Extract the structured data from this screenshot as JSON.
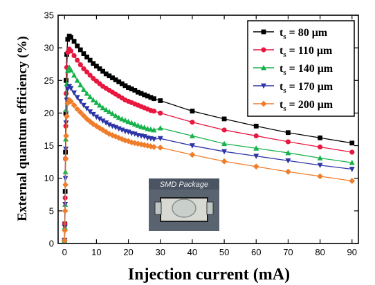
{
  "chart_data": {
    "type": "scatter",
    "xlabel": "Injection current (mA)",
    "ylabel": "External quantum efficiency (%)",
    "xlim": [
      -2,
      92
    ],
    "ylim": [
      0,
      35
    ],
    "xticks": [
      0,
      10,
      20,
      30,
      40,
      50,
      60,
      70,
      80,
      90
    ],
    "yticks": [
      0,
      5,
      10,
      15,
      20,
      25,
      30,
      35
    ],
    "grid": false,
    "legend_position": "top-right",
    "inset_label": "SMD Package",
    "series": [
      {
        "name": "ts = 80 μm",
        "label_main": "t",
        "label_sub": "s",
        "label_rest": " = 80 μm",
        "marker": "square",
        "color": "#000000",
        "x": [
          0,
          0.1,
          0.2,
          0.3,
          0.4,
          0.5,
          0.7,
          1,
          1.5,
          2,
          3,
          4,
          5,
          6,
          7,
          8,
          9,
          10,
          11,
          12,
          13,
          14,
          15,
          16,
          17,
          18,
          19,
          20,
          21,
          22,
          23,
          24,
          25,
          26,
          27,
          28,
          30,
          40,
          50,
          60,
          70,
          80,
          90
        ],
        "y": [
          0.5,
          3,
          8,
          14,
          20,
          25,
          29,
          31.3,
          31.8,
          31.6,
          31,
          30.3,
          29.7,
          29.1,
          28.6,
          28.1,
          27.6,
          27.2,
          26.8,
          26.4,
          26,
          25.7,
          25.4,
          25.1,
          24.8,
          24.5,
          24.2,
          23.9,
          23.7,
          23.5,
          23.2,
          23,
          22.8,
          22.6,
          22.4,
          22.2,
          21.9,
          20.3,
          19.1,
          18,
          17,
          16.2,
          15.4
        ]
      },
      {
        "name": "ts = 110 μm",
        "label_main": "t",
        "label_sub": "s",
        "label_rest": " = 110 μm",
        "marker": "circle",
        "color": "#e8173f",
        "x": [
          0,
          0.1,
          0.2,
          0.3,
          0.4,
          0.5,
          0.7,
          1,
          1.5,
          2,
          3,
          4,
          5,
          6,
          7,
          8,
          9,
          10,
          11,
          12,
          13,
          14,
          15,
          16,
          17,
          18,
          19,
          20,
          21,
          22,
          23,
          24,
          25,
          26,
          27,
          28,
          30,
          40,
          50,
          60,
          70,
          80,
          90
        ],
        "y": [
          0.5,
          3,
          7,
          13,
          18,
          23,
          27,
          29.3,
          29.8,
          29.5,
          28.8,
          28.1,
          27.4,
          26.8,
          26.3,
          25.8,
          25.3,
          24.9,
          24.5,
          24.1,
          23.8,
          23.5,
          23.2,
          22.9,
          22.6,
          22.3,
          22,
          21.8,
          21.6,
          21.4,
          21.2,
          21,
          20.8,
          20.6,
          20.4,
          20.3,
          20,
          18.6,
          17.4,
          16.5,
          15.6,
          14.8,
          14
        ]
      },
      {
        "name": "ts = 140 μm",
        "label_main": "t",
        "label_sub": "s",
        "label_rest": " = 140 μm",
        "marker": "triangle-up",
        "color": "#16b24b",
        "x": [
          0,
          0.1,
          0.2,
          0.3,
          0.4,
          0.5,
          0.7,
          1,
          1.5,
          2,
          3,
          4,
          5,
          6,
          7,
          8,
          9,
          10,
          11,
          12,
          13,
          14,
          15,
          16,
          17,
          18,
          19,
          20,
          21,
          22,
          23,
          24,
          25,
          26,
          27,
          28,
          30,
          40,
          50,
          60,
          70,
          80,
          90
        ],
        "y": [
          0.5,
          2.5,
          6,
          11,
          16,
          20.5,
          24.5,
          26.5,
          27,
          26.6,
          25.8,
          25,
          24.3,
          23.6,
          23,
          22.5,
          22,
          21.6,
          21.2,
          20.8,
          20.5,
          20.2,
          19.9,
          19.6,
          19.3,
          19.1,
          18.9,
          18.7,
          18.5,
          18.3,
          18.1,
          17.9,
          17.8,
          17.6,
          17.5,
          17.4,
          17.7,
          16.5,
          15.3,
          14.6,
          13.9,
          13.1,
          12.4
        ]
      },
      {
        "name": "ts = 170 μm",
        "label_main": "t",
        "label_sub": "s",
        "label_rest": " = 170 μm",
        "marker": "triangle-down",
        "color": "#2e35a6",
        "x": [
          0,
          0.1,
          0.2,
          0.3,
          0.4,
          0.5,
          0.7,
          1,
          1.5,
          2,
          3,
          4,
          5,
          6,
          7,
          8,
          9,
          10,
          11,
          12,
          13,
          14,
          15,
          16,
          17,
          18,
          19,
          20,
          21,
          22,
          23,
          24,
          25,
          26,
          27,
          28,
          30,
          40,
          50,
          60,
          70,
          80,
          90
        ],
        "y": [
          0.5,
          2.5,
          6,
          10,
          14.5,
          18.5,
          22,
          23.7,
          24.1,
          23.8,
          23.1,
          22.4,
          21.8,
          21.2,
          20.7,
          20.2,
          19.8,
          19.4,
          19.1,
          18.8,
          18.5,
          18.2,
          18,
          17.8,
          17.6,
          17.4,
          17.2,
          17.1,
          16.9,
          16.8,
          16.6,
          16.5,
          16.4,
          16.2,
          16.1,
          16,
          16.1,
          15,
          14.1,
          13.4,
          12.7,
          12,
          11.4
        ]
      },
      {
        "name": "ts = 200 μm",
        "label_main": "t",
        "label_sub": "s",
        "label_rest": " = 200 μm",
        "marker": "diamond",
        "color": "#f07d2a",
        "x": [
          0,
          0.1,
          0.2,
          0.3,
          0.4,
          0.5,
          0.7,
          1,
          1.5,
          2,
          3,
          4,
          5,
          6,
          7,
          8,
          9,
          10,
          11,
          12,
          13,
          14,
          15,
          16,
          17,
          18,
          19,
          20,
          21,
          22,
          23,
          24,
          25,
          26,
          27,
          28,
          30,
          40,
          50,
          60,
          70,
          80,
          90
        ],
        "y": [
          0.5,
          2,
          5,
          9,
          13,
          16.5,
          19.5,
          21.5,
          22,
          21.8,
          21.2,
          20.6,
          20.1,
          19.6,
          19.1,
          18.7,
          18.3,
          18,
          17.7,
          17.4,
          17.1,
          16.8,
          16.6,
          16.4,
          16.2,
          16,
          15.8,
          15.7,
          15.5,
          15.4,
          15.3,
          15.2,
          15.1,
          15,
          14.9,
          14.8,
          14.7,
          13.6,
          12.6,
          11.8,
          11,
          10.3,
          9.6
        ]
      }
    ]
  }
}
